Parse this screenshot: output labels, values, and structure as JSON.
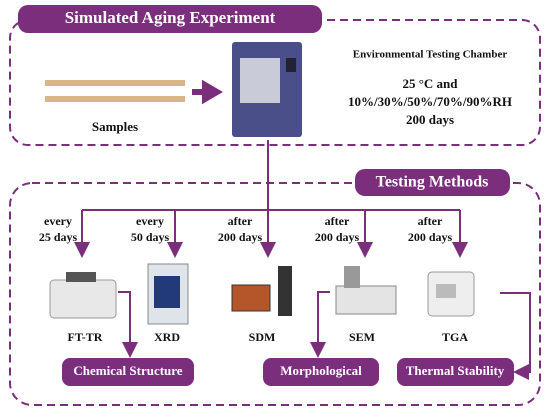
{
  "experiment": {
    "title": "Simulated Aging Experiment",
    "samples": "Samples",
    "chamber": "Environmental Testing Chamber",
    "conditions": [
      "25 °C and",
      "10%/30%/50%/70%/90%RH",
      "200 days"
    ]
  },
  "methods": {
    "title": "Testing Methods",
    "branches": [
      {
        "interval": [
          "every",
          "25 days"
        ],
        "instrument": "FT-TR"
      },
      {
        "interval": [
          "every",
          "50 days"
        ],
        "instrument": "XRD"
      },
      {
        "interval": [
          "after",
          "200 days"
        ],
        "instrument": "SDM"
      },
      {
        "interval": [
          "after",
          "200 days"
        ],
        "instrument": "SEM"
      },
      {
        "interval": [
          "after",
          "200 days"
        ],
        "instrument": "TGA"
      }
    ]
  },
  "results": [
    "Chemical Structure",
    "Morphological",
    "Thermal Stability"
  ]
}
